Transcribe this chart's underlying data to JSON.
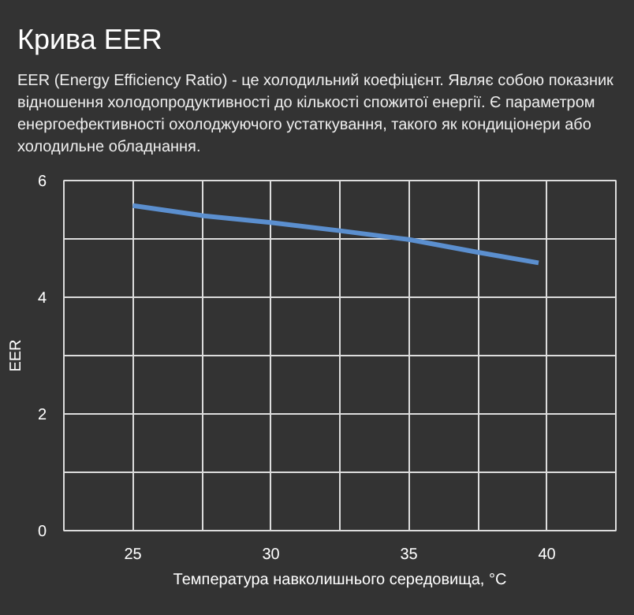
{
  "chart_data": {
    "type": "line",
    "title": "Крива EER",
    "subtitle": "EER (Energy Efficiency Ratio) - це холодильний коефіцієнт. Являє собою показник відношення холодопродуктивності до кількості спожитої енергії. Є параметром енергоефективності охолоджуючого устаткування, такого як кондиціонери або холодильне обладнання.",
    "xlabel": "Температура навколишнього середовища, °C",
    "ylabel": "EER",
    "series": [
      {
        "color": "#5b8fcf",
        "x": [
          25,
          27.5,
          30,
          32.5,
          35,
          37.5,
          39.7
        ],
        "values": [
          5.57,
          5.4,
          5.28,
          5.14,
          4.99,
          4.77,
          4.59
        ]
      }
    ],
    "xlim": [
      22.5,
      42.5
    ],
    "xticks": [
      {
        "value": 22.5,
        "label": null
      },
      25,
      {
        "value": 27.5,
        "label": null
      },
      30,
      {
        "value": 32.5,
        "label": null
      },
      35,
      {
        "value": 37.5,
        "label": null
      },
      40,
      {
        "value": 42.5,
        "label": null
      }
    ],
    "ylim": [
      0,
      6
    ],
    "yticks": [
      0,
      {
        "value": 1,
        "label": null
      },
      2,
      {
        "value": 3,
        "label": null
      },
      4,
      {
        "value": 5,
        "label": null
      },
      6
    ],
    "grid": true,
    "marker": "none",
    "line_style": "solid"
  }
}
